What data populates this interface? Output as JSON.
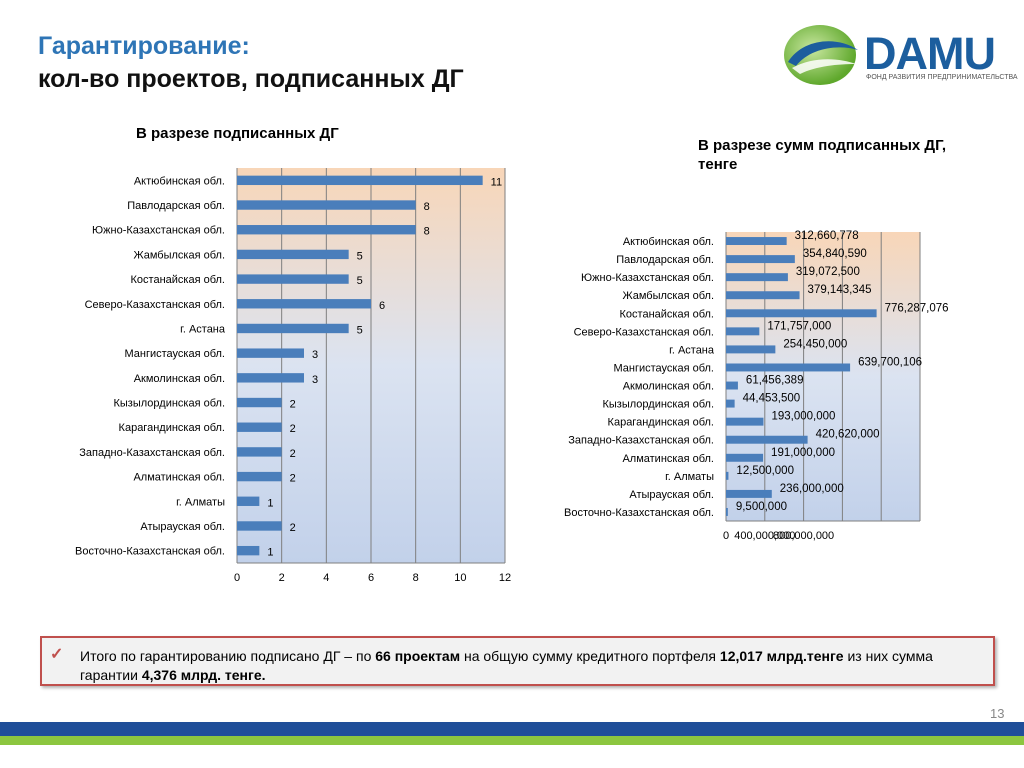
{
  "header": {
    "title_line1": "Гарантирование:",
    "title_line2": "кол-во проектов, подписанных ДГ"
  },
  "logo": {
    "name": "DAMU",
    "subtitle": "ФОНД РАЗВИТИЯ ПРЕДПРИНИМАТЕЛЬСТВА",
    "colors": {
      "blue": "#1c5e9e",
      "green": "#8cc63f"
    }
  },
  "left_heading": "В разрезе подписанных ДГ",
  "right_heading": {
    "line1": "В разрезе сумм подписанных ДГ,",
    "line2": "тенге"
  },
  "chart_data": [
    {
      "type": "bar",
      "orientation": "horizontal",
      "categories": [
        "Актюбинская обл.",
        "Павлодарская обл.",
        "Южно-Казахстанская обл.",
        "Жамбылская обл.",
        "Костанайская обл.",
        "Северо-Казахстанская обл.",
        "г. Астана",
        "Мангистауская обл.",
        "Акмолинская обл.",
        "Кызылординская обл.",
        "Карагандинская обл.",
        "Западно-Казахстанская обл.",
        "Алматинская обл.",
        "г. Алматы",
        "Атырауская обл.",
        "Восточно-Казахстанская обл."
      ],
      "values": [
        11,
        8,
        8,
        5,
        5,
        6,
        5,
        3,
        3,
        2,
        2,
        2,
        2,
        1,
        2,
        1
      ],
      "data_labels": [
        "11",
        "8",
        "8",
        "5",
        "5",
        "6",
        "5",
        "3",
        "3",
        "2",
        "2",
        "2",
        "2",
        "1",
        "2",
        "1"
      ],
      "xlim": [
        0,
        12
      ],
      "xticks": [
        "0",
        "2",
        "4",
        "6",
        "8",
        "10",
        "12"
      ],
      "grid": true,
      "bar_color": "#4a7ebb"
    },
    {
      "type": "bar",
      "orientation": "horizontal",
      "categories": [
        "Актюбинская обл.",
        "Павлодарская обл.",
        "Южно-Казахстанская обл.",
        "Жамбылская обл.",
        "Костанайская обл.",
        "Северо-Казахстанская обл.",
        "г. Астана",
        "Мангистауская обл.",
        "Акмолинская обл.",
        "Кызылординская обл.",
        "Карагандинская обл.",
        "Западно-Казахстанская обл.",
        "Алматинская обл.",
        "г. Алматы",
        "Атырауская обл.",
        "Восточно-Казахстанская обл."
      ],
      "values": [
        312660778,
        354840590,
        319072500,
        379143345,
        776287076,
        171757000,
        254450000,
        639700106,
        61456389,
        44453500,
        193000000,
        420620000,
        191000000,
        12500000,
        236000000,
        9500000
      ],
      "data_labels": [
        "312,660,778",
        "354,840,590",
        "319,072,500",
        "379,143,345",
        "776,287,076",
        "171,757,000",
        "254,450,000",
        "639,700,106",
        "61,456,389",
        "44,453,500",
        "193,000,000",
        "420,620,000",
        "191,000,000",
        "12,500,000",
        "236,000,000",
        "9,500,000"
      ],
      "xlim": [
        0,
        1000000000
      ],
      "xticks": [
        "0",
        "400,000,000",
        "800,000,000"
      ],
      "grid": true,
      "bar_color": "#4a7ebb"
    }
  ],
  "note": {
    "check_icon": "checkmark-icon",
    "text_1": "Итого по гарантированию подписано ДГ – по ",
    "bold_1": "66 проектам",
    "text_2": " на общую сумму кредитного портфеля ",
    "bold_2": "12,017 млрд.тенге",
    "text_3": " из них сумма гарантии ",
    "bold_3": "4,376 млрд. тенге."
  },
  "footer": {
    "page_number": "13",
    "colors": {
      "bar_blue": "#1f4e99",
      "bar_green": "#8cc63f"
    }
  }
}
